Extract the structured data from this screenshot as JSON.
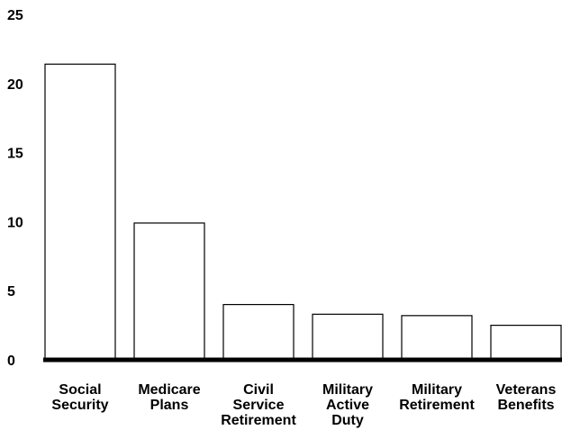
{
  "chart_data": {
    "type": "bar",
    "title": "",
    "xlabel": "",
    "ylabel": "",
    "ylim": [
      0,
      25
    ],
    "y_ticks": [
      0,
      5,
      10,
      15,
      20,
      25
    ],
    "grid": false,
    "categories": [
      [
        "Social",
        "Security"
      ],
      [
        "Medicare",
        "Plans"
      ],
      [
        "Civil",
        "Service",
        "Retirement"
      ],
      [
        "Military",
        "Active",
        "Duty"
      ],
      [
        "Military",
        "Retirement"
      ],
      [
        "Veterans",
        "Benefits"
      ]
    ],
    "values": [
      21.4,
      9.9,
      4.0,
      3.3,
      3.2,
      2.5
    ],
    "colors": {
      "bar_fill": "#ffffff",
      "bar_stroke": "#000000",
      "baseline": "#000000"
    }
  }
}
